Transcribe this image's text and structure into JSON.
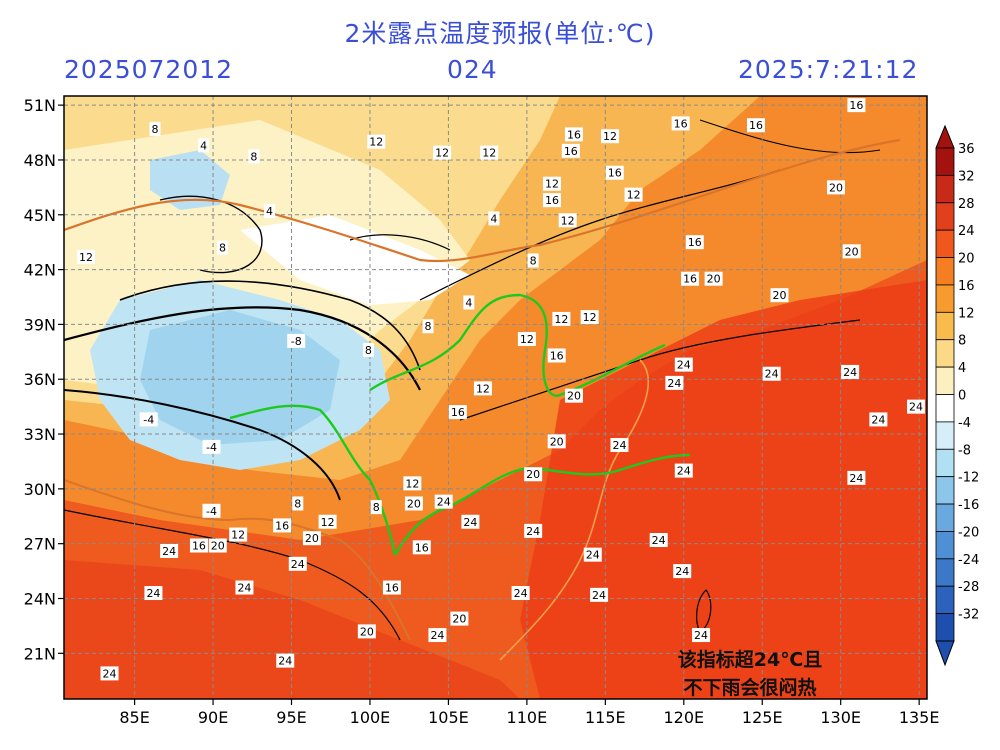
{
  "header": {
    "title": "2米露点温度预报(单位:℃)",
    "init_time": "2025072012",
    "forecast_hour": "024",
    "valid_time": "2025:7:21:12"
  },
  "map": {
    "lat_labels": [
      "51N",
      "48N",
      "45N",
      "42N",
      "39N",
      "36N",
      "33N",
      "30N",
      "27N",
      "24N",
      "21N"
    ],
    "lon_labels": [
      "85E",
      "90E",
      "95E",
      "100E",
      "105E",
      "110E",
      "115E",
      "120E",
      "125E",
      "130E",
      "135E"
    ],
    "lat_values": [
      51,
      48,
      45,
      42,
      39,
      36,
      33,
      30,
      27,
      24,
      21
    ],
    "lon_values": [
      85,
      90,
      95,
      100,
      105,
      110,
      115,
      120,
      125,
      130,
      135
    ],
    "lat_range": [
      18.5,
      51.5
    ],
    "lon_range": [
      80.5,
      135.5
    ],
    "grid": true
  },
  "colorbar": {
    "labels": [
      "36",
      "32",
      "28",
      "24",
      "20",
      "16",
      "12",
      "8",
      "4",
      "0",
      "-4",
      "-8",
      "-12",
      "-16",
      "-20",
      "-24",
      "-28",
      "-32"
    ],
    "colors": [
      "#a3120e",
      "#c72a18",
      "#e1401c",
      "#f0571d",
      "#f57e22",
      "#f79b2e",
      "#f8bb4c",
      "#fbd986",
      "#fcefc0",
      "#ffffff",
      "#d6eef8",
      "#b2e0f3",
      "#8cc6ea",
      "#6aa9df",
      "#4f8fd4",
      "#3b78c8",
      "#2c62bb",
      "#1f4fae"
    ]
  },
  "annotation": {
    "line1": "该指标超24℃且",
    "line2": "不下雨会很闷热"
  },
  "contour_labels": [
    {
      "text": "16",
      "lon": 131.0,
      "lat": 51.0
    },
    {
      "text": "16",
      "lon": 124.6,
      "lat": 49.9
    },
    {
      "text": "16",
      "lon": 119.8,
      "lat": 50.0
    },
    {
      "text": "16",
      "lon": 113.0,
      "lat": 49.4
    },
    {
      "text": "12",
      "lon": 115.3,
      "lat": 49.3
    },
    {
      "text": "16",
      "lon": 112.8,
      "lat": 48.5
    },
    {
      "text": "12",
      "lon": 100.4,
      "lat": 49.0
    },
    {
      "text": "12",
      "lon": 104.6,
      "lat": 48.4
    },
    {
      "text": "12",
      "lon": 107.6,
      "lat": 48.4
    },
    {
      "text": "16",
      "lon": 115.6,
      "lat": 47.3
    },
    {
      "text": "12",
      "lon": 111.6,
      "lat": 46.7
    },
    {
      "text": "16",
      "lon": 111.6,
      "lat": 45.8
    },
    {
      "text": "12",
      "lon": 116.8,
      "lat": 46.1
    },
    {
      "text": "12",
      "lon": 112.6,
      "lat": 44.7
    },
    {
      "text": "16",
      "lon": 120.7,
      "lat": 43.5
    },
    {
      "text": "20",
      "lon": 129.7,
      "lat": 46.5
    },
    {
      "text": "20",
      "lon": 130.7,
      "lat": 43.0
    },
    {
      "text": "16",
      "lon": 120.4,
      "lat": 41.5
    },
    {
      "text": "20",
      "lon": 121.9,
      "lat": 41.5
    },
    {
      "text": "20",
      "lon": 126.1,
      "lat": 40.6
    },
    {
      "text": "8",
      "lon": 86.3,
      "lat": 49.7
    },
    {
      "text": "4",
      "lon": 89.4,
      "lat": 48.8
    },
    {
      "text": "8",
      "lon": 92.6,
      "lat": 48.2
    },
    {
      "text": "12",
      "lon": 81.9,
      "lat": 42.7
    },
    {
      "text": "8",
      "lon": 90.6,
      "lat": 43.2
    },
    {
      "text": "4",
      "lon": 93.6,
      "lat": 45.2
    },
    {
      "text": "4",
      "lon": 107.9,
      "lat": 44.8
    },
    {
      "text": "8",
      "lon": 110.4,
      "lat": 42.5
    },
    {
      "text": "4",
      "lon": 106.3,
      "lat": 40.2
    },
    {
      "text": "12",
      "lon": 112.2,
      "lat": 39.3
    },
    {
      "text": "12",
      "lon": 114.0,
      "lat": 39.4
    },
    {
      "text": "12",
      "lon": 110.0,
      "lat": 38.2
    },
    {
      "text": "16",
      "lon": 111.9,
      "lat": 37.3
    },
    {
      "text": "24",
      "lon": 120.0,
      "lat": 36.8
    },
    {
      "text": "24",
      "lon": 125.6,
      "lat": 36.3
    },
    {
      "text": "24",
      "lon": 130.6,
      "lat": 36.4
    },
    {
      "text": "24",
      "lon": 119.4,
      "lat": 35.8
    },
    {
      "text": "20",
      "lon": 113.0,
      "lat": 35.1
    },
    {
      "text": "12",
      "lon": 107.2,
      "lat": 35.5
    },
    {
      "text": "16",
      "lon": 105.6,
      "lat": 34.2
    },
    {
      "text": "24",
      "lon": 132.4,
      "lat": 33.8
    },
    {
      "text": "24",
      "lon": 134.8,
      "lat": 34.5
    },
    {
      "text": "20",
      "lon": 111.9,
      "lat": 32.6
    },
    {
      "text": "24",
      "lon": 115.9,
      "lat": 32.4
    },
    {
      "text": "24",
      "lon": 120.0,
      "lat": 31.0
    },
    {
      "text": "20",
      "lon": 110.4,
      "lat": 30.8
    },
    {
      "text": "24",
      "lon": 131.0,
      "lat": 30.6
    },
    {
      "text": "-4",
      "lon": 85.9,
      "lat": 33.8
    },
    {
      "text": "-4",
      "lon": 89.9,
      "lat": 32.3
    },
    {
      "text": "-8",
      "lon": 95.3,
      "lat": 38.1
    },
    {
      "text": "-4",
      "lon": 89.9,
      "lat": 28.8
    },
    {
      "text": "8",
      "lon": 99.9,
      "lat": 37.6
    },
    {
      "text": "8",
      "lon": 103.7,
      "lat": 38.9
    },
    {
      "text": "12",
      "lon": 102.7,
      "lat": 30.3
    },
    {
      "text": "20",
      "lon": 102.8,
      "lat": 29.2
    },
    {
      "text": "24",
      "lon": 104.7,
      "lat": 29.3
    },
    {
      "text": "8",
      "lon": 95.4,
      "lat": 29.2
    },
    {
      "text": "8",
      "lon": 100.4,
      "lat": 29.0
    },
    {
      "text": "24",
      "lon": 106.4,
      "lat": 28.2
    },
    {
      "text": "24",
      "lon": 110.4,
      "lat": 27.7
    },
    {
      "text": "24",
      "lon": 118.4,
      "lat": 27.2
    },
    {
      "text": "24",
      "lon": 114.2,
      "lat": 26.4
    },
    {
      "text": "12",
      "lon": 97.3,
      "lat": 28.2
    },
    {
      "text": "20",
      "lon": 96.3,
      "lat": 27.3
    },
    {
      "text": "16",
      "lon": 94.4,
      "lat": 28.0
    },
    {
      "text": "12",
      "lon": 91.6,
      "lat": 27.5
    },
    {
      "text": "16",
      "lon": 89.1,
      "lat": 26.9
    },
    {
      "text": "20",
      "lon": 90.3,
      "lat": 26.9
    },
    {
      "text": "24",
      "lon": 87.2,
      "lat": 26.6
    },
    {
      "text": "16",
      "lon": 103.3,
      "lat": 26.8
    },
    {
      "text": "24",
      "lon": 95.4,
      "lat": 25.9
    },
    {
      "text": "24",
      "lon": 119.9,
      "lat": 25.5
    },
    {
      "text": "16",
      "lon": 101.4,
      "lat": 24.6
    },
    {
      "text": "24",
      "lon": 86.2,
      "lat": 24.3
    },
    {
      "text": "24",
      "lon": 92.0,
      "lat": 24.6
    },
    {
      "text": "24",
      "lon": 109.6,
      "lat": 24.3
    },
    {
      "text": "24",
      "lon": 114.6,
      "lat": 24.2
    },
    {
      "text": "20",
      "lon": 105.7,
      "lat": 22.9
    },
    {
      "text": "20",
      "lon": 99.8,
      "lat": 22.2
    },
    {
      "text": "24",
      "lon": 104.3,
      "lat": 22.0
    },
    {
      "text": "24",
      "lon": 121.1,
      "lat": 22.0
    },
    {
      "text": "24",
      "lon": 94.6,
      "lat": 20.6
    },
    {
      "text": "24",
      "lon": 83.4,
      "lat": 19.9
    }
  ]
}
